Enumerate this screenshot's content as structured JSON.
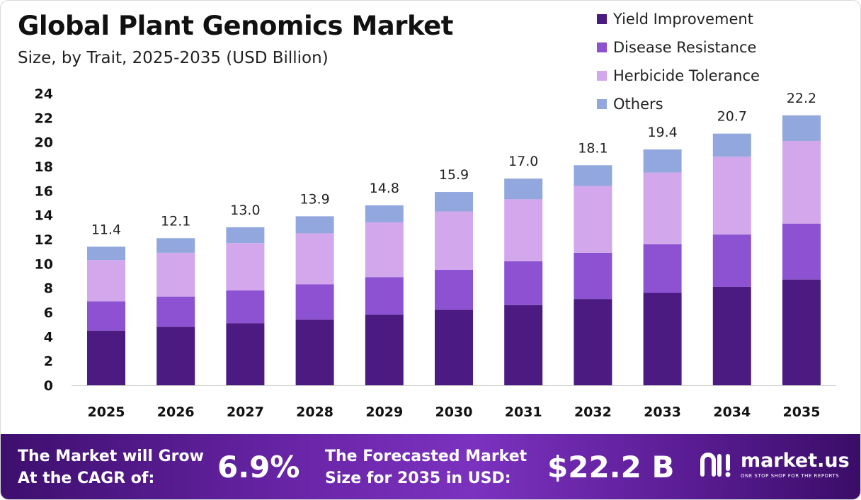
{
  "title": "Global Plant Genomics Market",
  "subtitle": "Size, by Trait, 2025-2035 (USD Billion)",
  "legend": [
    {
      "label": "Yield Improvement",
      "color": "#4b1b82"
    },
    {
      "label": "Disease Resistance",
      "color": "#8c52d1"
    },
    {
      "label": "Herbicide Tolerance",
      "color": "#d2a7ec"
    },
    {
      "label": "Others",
      "color": "#92a7dd"
    }
  ],
  "chart_data": {
    "type": "bar",
    "stacked": true,
    "categories": [
      "2025",
      "2026",
      "2027",
      "2028",
      "2029",
      "2030",
      "2031",
      "2032",
      "2033",
      "2034",
      "2035"
    ],
    "series": [
      {
        "name": "Yield Improvement",
        "color": "#4b1b82",
        "values": [
          4.5,
          4.8,
          5.1,
          5.4,
          5.8,
          6.2,
          6.6,
          7.1,
          7.6,
          8.1,
          8.7
        ]
      },
      {
        "name": "Disease Resistance",
        "color": "#8c52d1",
        "values": [
          2.4,
          2.5,
          2.7,
          2.9,
          3.1,
          3.3,
          3.6,
          3.8,
          4.0,
          4.3,
          4.6
        ]
      },
      {
        "name": "Herbicide Tolerance",
        "color": "#d2a7ec",
        "values": [
          3.4,
          3.6,
          3.9,
          4.2,
          4.5,
          4.8,
          5.1,
          5.5,
          5.9,
          6.4,
          6.8
        ]
      },
      {
        "name": "Others",
        "color": "#92a7dd",
        "values": [
          1.1,
          1.2,
          1.3,
          1.4,
          1.4,
          1.6,
          1.7,
          1.7,
          1.9,
          1.9,
          2.1
        ]
      }
    ],
    "totals": [
      "11.4",
      "12.1",
      "13.0",
      "13.9",
      "14.8",
      "15.9",
      "17.0",
      "18.1",
      "19.4",
      "20.7",
      "22.2"
    ],
    "yticks": [
      "0",
      "2",
      "4",
      "6",
      "8",
      "10",
      "12",
      "14",
      "16",
      "18",
      "20",
      "22",
      "24"
    ],
    "ylim": [
      0,
      24
    ],
    "grid": false,
    "legend_position": "top-right"
  },
  "footer": {
    "cagr_label_line1": "The Market will Grow",
    "cagr_label_line2": "At the CAGR of:",
    "cagr_value": "6.9%",
    "forecast_label_line1": "The Forecasted Market",
    "forecast_label_line2": "Size for 2035 in USD:",
    "forecast_value": "$22.2 B",
    "brand_name": "market.us",
    "brand_tagline": "ONE STOP SHOP FOR THE REPORTS"
  }
}
